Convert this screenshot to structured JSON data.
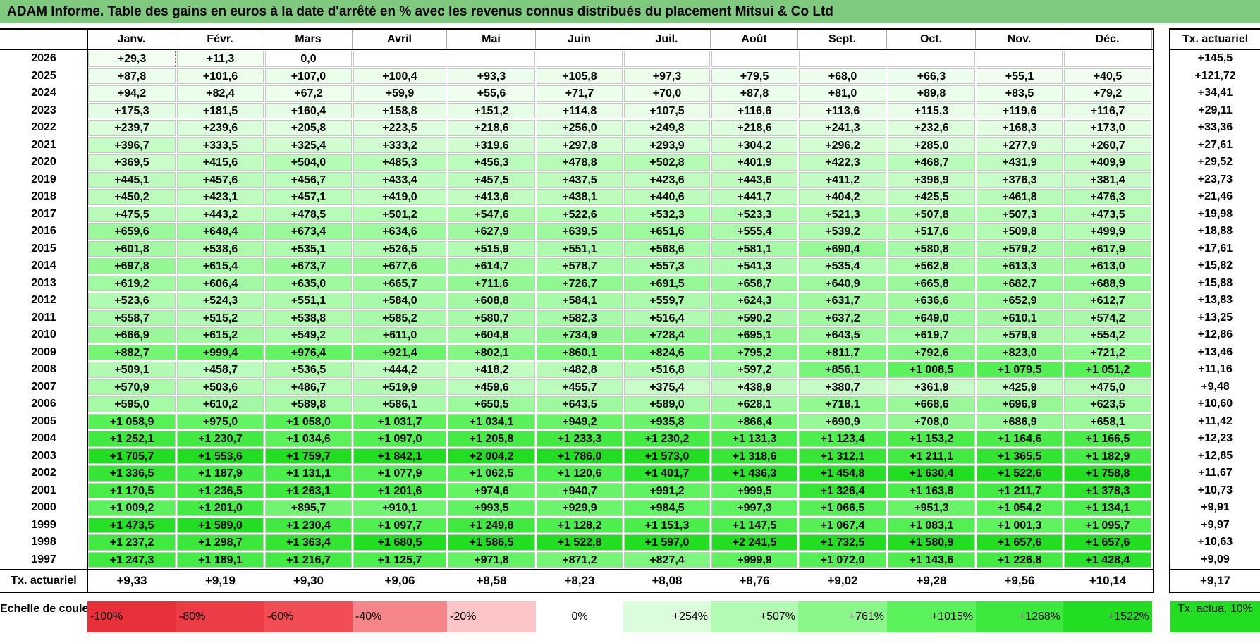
{
  "title": "ADAM Informe. Table des gains en euros à la date d'arrêté en % avec les revenus connus distribués du placement Mitsui & Co Ltd",
  "months": [
    "Janv.",
    "Févr.",
    "Mars",
    "Avril",
    "Mai",
    "Juin",
    "Juil.",
    "Août",
    "Sept.",
    "Oct.",
    "Nov.",
    "Déc."
  ],
  "actuarial_header": "Tx. actuariel",
  "rows": [
    {
      "year": "2026",
      "values": [
        "+29,3",
        "+11,3",
        "0,0",
        "",
        "",
        "",
        "",
        "",
        "",
        "",
        "",
        ""
      ],
      "rate": "+145,5"
    },
    {
      "year": "2025",
      "values": [
        "+87,8",
        "+101,6",
        "+107,0",
        "+100,4",
        "+93,3",
        "+105,8",
        "+97,3",
        "+79,5",
        "+68,0",
        "+66,3",
        "+55,1",
        "+40,5"
      ],
      "rate": "+121,72"
    },
    {
      "year": "2024",
      "values": [
        "+94,2",
        "+82,4",
        "+67,2",
        "+59,9",
        "+55,6",
        "+71,7",
        "+70,0",
        "+87,8",
        "+81,0",
        "+89,8",
        "+83,5",
        "+79,2"
      ],
      "rate": "+34,41"
    },
    {
      "year": "2023",
      "values": [
        "+175,3",
        "+181,5",
        "+160,4",
        "+158,8",
        "+151,2",
        "+114,8",
        "+107,5",
        "+116,6",
        "+113,6",
        "+115,3",
        "+119,6",
        "+116,7"
      ],
      "rate": "+29,11"
    },
    {
      "year": "2022",
      "values": [
        "+239,7",
        "+239,6",
        "+205,8",
        "+223,5",
        "+218,6",
        "+256,0",
        "+249,8",
        "+218,6",
        "+241,3",
        "+232,6",
        "+168,3",
        "+173,0"
      ],
      "rate": "+33,36"
    },
    {
      "year": "2021",
      "values": [
        "+396,7",
        "+333,5",
        "+325,4",
        "+333,2",
        "+319,6",
        "+297,8",
        "+293,9",
        "+304,2",
        "+296,2",
        "+285,0",
        "+277,9",
        "+260,7"
      ],
      "rate": "+27,61"
    },
    {
      "year": "2020",
      "values": [
        "+369,5",
        "+415,6",
        "+504,0",
        "+485,3",
        "+456,3",
        "+478,8",
        "+502,8",
        "+401,9",
        "+422,3",
        "+468,7",
        "+431,9",
        "+409,9"
      ],
      "rate": "+29,52"
    },
    {
      "year": "2019",
      "values": [
        "+445,1",
        "+457,6",
        "+456,7",
        "+433,4",
        "+457,5",
        "+437,5",
        "+423,6",
        "+443,6",
        "+411,2",
        "+396,9",
        "+376,3",
        "+381,4"
      ],
      "rate": "+23,73"
    },
    {
      "year": "2018",
      "values": [
        "+450,2",
        "+423,1",
        "+457,1",
        "+419,0",
        "+413,6",
        "+438,1",
        "+440,6",
        "+441,7",
        "+404,2",
        "+425,5",
        "+461,8",
        "+476,3"
      ],
      "rate": "+21,46"
    },
    {
      "year": "2017",
      "values": [
        "+475,5",
        "+443,2",
        "+478,5",
        "+501,2",
        "+547,6",
        "+522,6",
        "+532,3",
        "+523,3",
        "+521,3",
        "+507,8",
        "+507,3",
        "+473,5"
      ],
      "rate": "+19,98"
    },
    {
      "year": "2016",
      "values": [
        "+659,6",
        "+648,4",
        "+673,4",
        "+634,6",
        "+627,9",
        "+639,5",
        "+651,6",
        "+555,4",
        "+539,2",
        "+517,6",
        "+509,8",
        "+499,9"
      ],
      "rate": "+18,88"
    },
    {
      "year": "2015",
      "values": [
        "+601,8",
        "+538,6",
        "+535,1",
        "+526,5",
        "+515,9",
        "+551,1",
        "+568,6",
        "+581,1",
        "+690,4",
        "+580,8",
        "+579,2",
        "+617,9"
      ],
      "rate": "+17,61"
    },
    {
      "year": "2014",
      "values": [
        "+697,8",
        "+615,4",
        "+673,7",
        "+677,6",
        "+614,7",
        "+578,7",
        "+557,3",
        "+541,3",
        "+535,4",
        "+562,8",
        "+613,3",
        "+613,0"
      ],
      "rate": "+15,82"
    },
    {
      "year": "2013",
      "values": [
        "+619,2",
        "+606,4",
        "+635,0",
        "+665,7",
        "+711,6",
        "+726,7",
        "+691,5",
        "+658,7",
        "+640,9",
        "+665,8",
        "+682,7",
        "+688,9"
      ],
      "rate": "+15,88"
    },
    {
      "year": "2012",
      "values": [
        "+523,6",
        "+524,3",
        "+551,1",
        "+584,0",
        "+608,8",
        "+584,1",
        "+559,7",
        "+624,3",
        "+631,7",
        "+636,6",
        "+652,9",
        "+612,7"
      ],
      "rate": "+13,83"
    },
    {
      "year": "2011",
      "values": [
        "+558,7",
        "+515,2",
        "+538,8",
        "+585,2",
        "+580,7",
        "+582,3",
        "+516,4",
        "+590,2",
        "+637,2",
        "+649,0",
        "+610,1",
        "+574,2"
      ],
      "rate": "+13,25"
    },
    {
      "year": "2010",
      "values": [
        "+666,9",
        "+615,2",
        "+549,2",
        "+611,0",
        "+604,8",
        "+734,9",
        "+728,4",
        "+695,1",
        "+643,5",
        "+619,7",
        "+579,9",
        "+554,2"
      ],
      "rate": "+12,86"
    },
    {
      "year": "2009",
      "values": [
        "+882,7",
        "+999,4",
        "+976,4",
        "+921,4",
        "+802,1",
        "+860,1",
        "+824,6",
        "+795,2",
        "+811,7",
        "+792,6",
        "+823,0",
        "+721,2"
      ],
      "rate": "+13,46"
    },
    {
      "year": "2008",
      "values": [
        "+509,1",
        "+458,7",
        "+536,5",
        "+444,2",
        "+418,2",
        "+482,8",
        "+516,8",
        "+597,2",
        "+856,1",
        "+1 008,5",
        "+1 079,5",
        "+1 051,2"
      ],
      "rate": "+11,16"
    },
    {
      "year": "2007",
      "values": [
        "+570,9",
        "+503,6",
        "+486,7",
        "+519,9",
        "+459,6",
        "+455,7",
        "+375,4",
        "+438,9",
        "+380,7",
        "+361,9",
        "+425,9",
        "+475,0"
      ],
      "rate": "+9,48"
    },
    {
      "year": "2006",
      "values": [
        "+595,0",
        "+610,2",
        "+589,8",
        "+586,1",
        "+650,5",
        "+643,5",
        "+589,0",
        "+628,1",
        "+718,1",
        "+668,6",
        "+696,9",
        "+623,5"
      ],
      "rate": "+10,60"
    },
    {
      "year": "2005",
      "values": [
        "+1 058,9",
        "+975,0",
        "+1 058,0",
        "+1 031,7",
        "+1 034,1",
        "+949,2",
        "+935,8",
        "+866,4",
        "+690,9",
        "+708,0",
        "+686,9",
        "+658,1"
      ],
      "rate": "+11,42"
    },
    {
      "year": "2004",
      "values": [
        "+1 252,1",
        "+1 230,7",
        "+1 034,6",
        "+1 097,0",
        "+1 205,8",
        "+1 233,3",
        "+1 230,2",
        "+1 131,3",
        "+1 123,4",
        "+1 153,2",
        "+1 164,6",
        "+1 166,5"
      ],
      "rate": "+12,23"
    },
    {
      "year": "2003",
      "values": [
        "+1 705,7",
        "+1 553,6",
        "+1 759,7",
        "+1 842,1",
        "+2 004,2",
        "+1 786,0",
        "+1 573,0",
        "+1 318,6",
        "+1 312,1",
        "+1 211,1",
        "+1 365,5",
        "+1 182,9"
      ],
      "rate": "+12,85"
    },
    {
      "year": "2002",
      "values": [
        "+1 336,5",
        "+1 187,9",
        "+1 131,1",
        "+1 077,9",
        "+1 062,5",
        "+1 120,6",
        "+1 401,7",
        "+1 436,3",
        "+1 454,8",
        "+1 630,4",
        "+1 522,6",
        "+1 758,8"
      ],
      "rate": "+11,67"
    },
    {
      "year": "2001",
      "values": [
        "+1 170,5",
        "+1 236,5",
        "+1 263,1",
        "+1 201,6",
        "+974,6",
        "+940,7",
        "+991,2",
        "+999,5",
        "+1 326,4",
        "+1 163,8",
        "+1 211,7",
        "+1 378,3"
      ],
      "rate": "+10,73"
    },
    {
      "year": "2000",
      "values": [
        "+1 009,2",
        "+1 201,0",
        "+895,7",
        "+910,1",
        "+993,5",
        "+929,9",
        "+984,5",
        "+997,3",
        "+1 066,5",
        "+951,3",
        "+1 054,2",
        "+1 134,1"
      ],
      "rate": "+9,91"
    },
    {
      "year": "1999",
      "values": [
        "+1 473,5",
        "+1 589,0",
        "+1 230,4",
        "+1 097,7",
        "+1 249,8",
        "+1 128,2",
        "+1 151,3",
        "+1 147,5",
        "+1 067,4",
        "+1 083,1",
        "+1 001,3",
        "+1 095,7"
      ],
      "rate": "+9,97"
    },
    {
      "year": "1998",
      "values": [
        "+1 237,2",
        "+1 298,7",
        "+1 363,4",
        "+1 680,5",
        "+1 586,5",
        "+1 522,8",
        "+1 597,0",
        "+2 241,5",
        "+1 732,5",
        "+1 580,9",
        "+1 657,6",
        "+1 657,6"
      ],
      "rate": "+10,63"
    },
    {
      "year": "1997",
      "values": [
        "+1 247,3",
        "+1 189,1",
        "+1 216,7",
        "+1 125,7",
        "+971,8",
        "+871,2",
        "+827,4",
        "+999,9",
        "+1 072,0",
        "+1 143,6",
        "+1 226,8",
        "+1 428,4"
      ],
      "rate": "+9,09"
    }
  ],
  "footer": {
    "label": "Tx. actuariel",
    "values": [
      "+9,33",
      "+9,19",
      "+9,30",
      "+9,06",
      "+8,58",
      "+8,23",
      "+8,08",
      "+8,76",
      "+9,02",
      "+9,28",
      "+9,56",
      "+10,14"
    ],
    "overall": "+9,17"
  },
  "color_scale": {
    "label": "Echelle de couleur",
    "items": [
      {
        "label": "-100%",
        "color": "#e8303a"
      },
      {
        "label": "-80%",
        "color": "#ec3d46"
      },
      {
        "label": "-60%",
        "color": "#f24c54"
      },
      {
        "label": "-40%",
        "color": "#f58589"
      },
      {
        "label": "-20%",
        "color": "#fbc5c7"
      },
      {
        "label": "0%",
        "color": "#ffffff"
      },
      {
        "label": "+254%",
        "color": "#dbfddb"
      },
      {
        "label": "+507%",
        "color": "#b3fbb3"
      },
      {
        "label": "+761%",
        "color": "#8bf78b"
      },
      {
        "label": "+1015%",
        "color": "#5cf25c"
      },
      {
        "label": "+1268%",
        "color": "#3de83d"
      },
      {
        "label": "+1522%",
        "color": "#22dd22"
      }
    ],
    "rate_box": "Tx. actua. 10%",
    "rate_box_color": "#22dd22"
  },
  "colors": {
    "title_bar": "#7fca7f",
    "max_green": "#22dd22"
  }
}
